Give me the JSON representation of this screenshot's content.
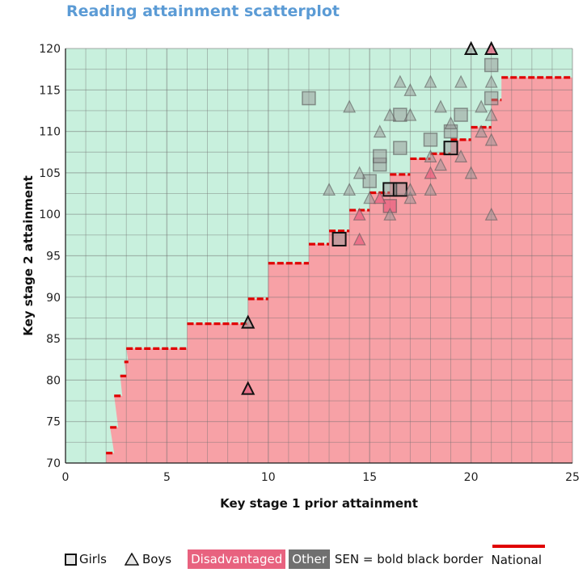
{
  "chart_data": {
    "type": "scatter",
    "title": "Reading attainment scatterplot",
    "xlabel": "Key stage 1 prior attainment",
    "ylabel": "Key stage 2 attainment",
    "xlim": [
      0,
      25
    ],
    "ylim": [
      70,
      120
    ],
    "xticks": [
      0,
      5,
      10,
      15,
      20,
      25
    ],
    "yticks": [
      70,
      75,
      80,
      85,
      90,
      95,
      100,
      105,
      110,
      115,
      120
    ],
    "grid": true,
    "regions": {
      "above_color": "#c8f0dd",
      "below_color": "#f7a1a6"
    },
    "national": [
      {
        "x0": 2.0,
        "x1": 2.4,
        "y": 71.2
      },
      {
        "x0": 2.2,
        "x1": 2.6,
        "y": 74.3
      },
      {
        "x0": 2.4,
        "x1": 2.8,
        "y": 78.1
      },
      {
        "x0": 2.7,
        "x1": 3.0,
        "y": 80.5
      },
      {
        "x0": 2.9,
        "x1": 3.1,
        "y": 82.2
      },
      {
        "x0": 3.0,
        "x1": 6.0,
        "y": 83.8
      },
      {
        "x0": 6.0,
        "x1": 9.0,
        "y": 86.8
      },
      {
        "x0": 9.0,
        "x1": 10.0,
        "y": 89.8
      },
      {
        "x0": 10.0,
        "x1": 12.0,
        "y": 94.1
      },
      {
        "x0": 12.0,
        "x1": 13.0,
        "y": 96.4
      },
      {
        "x0": 13.0,
        "x1": 14.0,
        "y": 98.0
      },
      {
        "x0": 14.0,
        "x1": 15.0,
        "y": 100.5
      },
      {
        "x0": 15.0,
        "x1": 16.0,
        "y": 102.6
      },
      {
        "x0": 16.0,
        "x1": 17.0,
        "y": 104.8
      },
      {
        "x0": 17.0,
        "x1": 18.0,
        "y": 106.7
      },
      {
        "x0": 18.0,
        "x1": 19.0,
        "y": 107.3
      },
      {
        "x0": 19.0,
        "x1": 20.0,
        "y": 109.0
      },
      {
        "x0": 20.0,
        "x1": 21.0,
        "y": 110.5
      },
      {
        "x0": 21.0,
        "x1": 21.5,
        "y": 113.8
      },
      {
        "x0": 21.5,
        "x1": 25.0,
        "y": 116.5
      }
    ],
    "series": [
      {
        "name": "Girls",
        "marker": "square",
        "points": [
          {
            "x": 12.0,
            "y": 114,
            "group": "Other",
            "sen": false
          },
          {
            "x": 13.5,
            "y": 97,
            "group": "Other",
            "sen": true
          },
          {
            "x": 15.0,
            "y": 104,
            "group": "Other",
            "sen": false
          },
          {
            "x": 15.5,
            "y": 106,
            "group": "Other",
            "sen": false
          },
          {
            "x": 15.5,
            "y": 107,
            "group": "Other",
            "sen": false
          },
          {
            "x": 16.0,
            "y": 101,
            "group": "Disadvantaged",
            "sen": false
          },
          {
            "x": 16.0,
            "y": 103,
            "group": "Other",
            "sen": true
          },
          {
            "x": 16.5,
            "y": 103,
            "group": "Other",
            "sen": true
          },
          {
            "x": 16.5,
            "y": 108,
            "group": "Other",
            "sen": false
          },
          {
            "x": 16.5,
            "y": 112,
            "group": "Other",
            "sen": false
          },
          {
            "x": 18.0,
            "y": 109,
            "group": "Other",
            "sen": false
          },
          {
            "x": 19.0,
            "y": 108,
            "group": "Other",
            "sen": true
          },
          {
            "x": 19.0,
            "y": 110,
            "group": "Other",
            "sen": false
          },
          {
            "x": 19.5,
            "y": 112,
            "group": "Other",
            "sen": false
          },
          {
            "x": 21.0,
            "y": 114,
            "group": "Other",
            "sen": false
          },
          {
            "x": 21.0,
            "y": 118,
            "group": "Other",
            "sen": false
          }
        ]
      },
      {
        "name": "Boys",
        "marker": "triangle",
        "points": [
          {
            "x": 9.0,
            "y": 79,
            "group": "Disadvantaged",
            "sen": true
          },
          {
            "x": 9.0,
            "y": 87,
            "group": "Other",
            "sen": true
          },
          {
            "x": 13.0,
            "y": 103,
            "group": "Other",
            "sen": false
          },
          {
            "x": 14.0,
            "y": 103,
            "group": "Other",
            "sen": false
          },
          {
            "x": 14.0,
            "y": 113,
            "group": "Other",
            "sen": false
          },
          {
            "x": 14.5,
            "y": 97,
            "group": "Disadvantaged",
            "sen": false
          },
          {
            "x": 14.5,
            "y": 100,
            "group": "Disadvantaged",
            "sen": false
          },
          {
            "x": 14.5,
            "y": 105,
            "group": "Other",
            "sen": false
          },
          {
            "x": 15.0,
            "y": 102,
            "group": "Other",
            "sen": false
          },
          {
            "x": 15.5,
            "y": 102,
            "group": "Disadvantaged",
            "sen": false
          },
          {
            "x": 15.5,
            "y": 110,
            "group": "Other",
            "sen": false
          },
          {
            "x": 16.0,
            "y": 100,
            "group": "Other",
            "sen": false
          },
          {
            "x": 16.0,
            "y": 112,
            "group": "Other",
            "sen": false
          },
          {
            "x": 16.5,
            "y": 116,
            "group": "Other",
            "sen": false
          },
          {
            "x": 17.0,
            "y": 102,
            "group": "Other",
            "sen": false
          },
          {
            "x": 17.0,
            "y": 103,
            "group": "Other",
            "sen": false
          },
          {
            "x": 17.0,
            "y": 112,
            "group": "Other",
            "sen": false
          },
          {
            "x": 17.0,
            "y": 115,
            "group": "Other",
            "sen": false
          },
          {
            "x": 18.0,
            "y": 103,
            "group": "Other",
            "sen": false
          },
          {
            "x": 18.0,
            "y": 105,
            "group": "Disadvantaged",
            "sen": false
          },
          {
            "x": 18.0,
            "y": 107,
            "group": "Other",
            "sen": false
          },
          {
            "x": 18.0,
            "y": 116,
            "group": "Other",
            "sen": false
          },
          {
            "x": 18.5,
            "y": 106,
            "group": "Other",
            "sen": false
          },
          {
            "x": 18.5,
            "y": 113,
            "group": "Other",
            "sen": false
          },
          {
            "x": 19.0,
            "y": 111,
            "group": "Other",
            "sen": false
          },
          {
            "x": 19.5,
            "y": 107,
            "group": "Other",
            "sen": false
          },
          {
            "x": 19.5,
            "y": 116,
            "group": "Other",
            "sen": false
          },
          {
            "x": 20.0,
            "y": 105,
            "group": "Other",
            "sen": false
          },
          {
            "x": 20.0,
            "y": 120,
            "group": "Other",
            "sen": true
          },
          {
            "x": 20.5,
            "y": 110,
            "group": "Other",
            "sen": false
          },
          {
            "x": 20.5,
            "y": 113,
            "group": "Other",
            "sen": false
          },
          {
            "x": 21.0,
            "y": 100,
            "group": "Other",
            "sen": false
          },
          {
            "x": 21.0,
            "y": 109,
            "group": "Other",
            "sen": false
          },
          {
            "x": 21.0,
            "y": 112,
            "group": "Other",
            "sen": false
          },
          {
            "x": 21.0,
            "y": 116,
            "group": "Other",
            "sen": false
          },
          {
            "x": 21.0,
            "y": 120,
            "group": "Disadvantaged",
            "sen": true
          }
        ]
      }
    ]
  },
  "legend": {
    "girls": "Girls",
    "boys": "Boys",
    "disadvantaged": "Disadvantaged",
    "other": "Other",
    "sen": "SEN = bold black border",
    "national": "National"
  },
  "colors": {
    "title": "#5b9bd5",
    "disadvantaged": "#e8627f",
    "other": "#707070",
    "national": "#e00000"
  }
}
